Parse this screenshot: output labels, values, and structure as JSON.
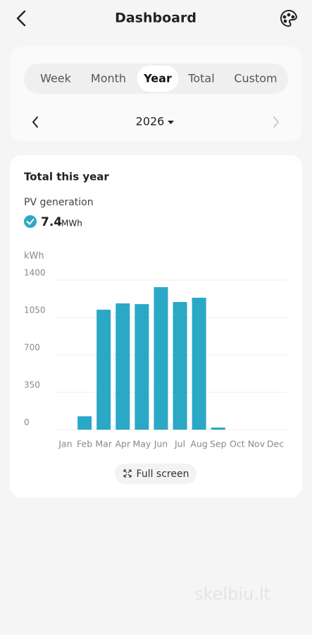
{
  "header": {
    "title": "Dashboard"
  },
  "tabs": {
    "items": [
      "Week",
      "Month",
      "Year",
      "Total",
      "Custom"
    ],
    "selected": 2
  },
  "period": "2026",
  "card": {
    "title": "Total this year",
    "metric": "PV generation",
    "total": "7.4",
    "total_unit": "MWh",
    "button": "Full screen"
  },
  "watermark": "skelbiu.lt",
  "chart_data": {
    "type": "bar",
    "y_label": "kWh",
    "categories": [
      "Jan",
      "Feb",
      "Mar",
      "Apr",
      "May",
      "Jun",
      "Jul",
      "Aug",
      "Sep",
      "Oct",
      "Nov",
      "Dec"
    ],
    "values": [
      0,
      125,
      1123,
      1182,
      1175,
      1334,
      1195,
      1235,
      20,
      0,
      0,
      0
    ],
    "color": "#2aa8c6",
    "ylim": [
      0,
      1400
    ],
    "yticks": [
      0,
      350,
      700,
      1050,
      1400
    ],
    "grid": true
  }
}
